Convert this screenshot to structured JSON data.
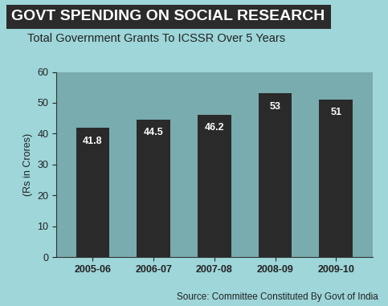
{
  "chart_data": {
    "type": "bar",
    "title": "GOVT SPENDING ON SOCIAL RESEARCH",
    "subtitle": "Total Government Grants To ICSSR Over 5 Years",
    "y_label": "(Rs in Crores)",
    "source": "Source: Committee Constituted By Govt of India",
    "categories": [
      "2005-06",
      "2006-07",
      "2007-08",
      "2008-09",
      "2009-10"
    ],
    "values": [
      41.8,
      44.5,
      46.2,
      53,
      51
    ],
    "color": "#2a2a2a",
    "ylim": [
      0,
      60
    ],
    "yticks": [
      0,
      10,
      20,
      30,
      40,
      50,
      60
    ],
    "grid": false,
    "data_labels": true
  }
}
